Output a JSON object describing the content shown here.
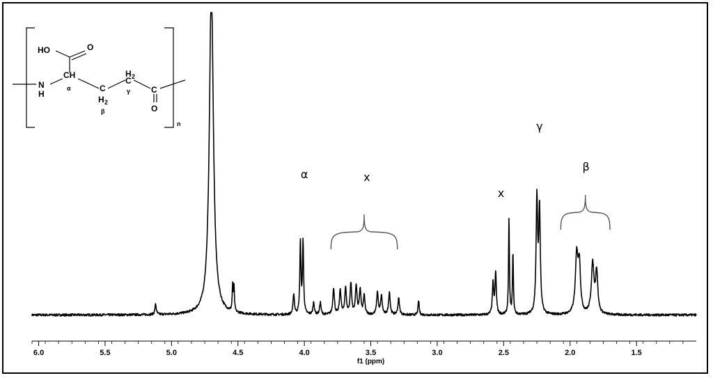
{
  "chart_data": {
    "type": "line",
    "title": "",
    "xlabel": "f1 (ppm)",
    "ylabel": "",
    "xlim": [
      6.05,
      1.05
    ],
    "ylim": [
      0,
      100
    ],
    "x_reversed": true,
    "x_ticks": [
      "6.0",
      "5.5",
      "5.0",
      "4.5",
      "4.0",
      "3.5",
      "3.0",
      "2.5",
      "2.0",
      "1.5"
    ],
    "grid": false,
    "legend": "none",
    "line_color": "#000000",
    "baseline": 1.5,
    "peaks": [
      {
        "ppm": 5.12,
        "height": 5,
        "width": 0.006
      },
      {
        "ppm": 4.7,
        "height": 160,
        "width": 0.018
      },
      {
        "ppm": 4.53,
        "height": 12,
        "width": 0.004
      },
      {
        "ppm": 4.54,
        "height": 12,
        "width": 0.004
      },
      {
        "ppm": 4.08,
        "height": 10,
        "width": 0.006
      },
      {
        "ppm": 4.03,
        "height": 35,
        "width": 0.005
      },
      {
        "ppm": 4.01,
        "height": 35,
        "width": 0.005
      },
      {
        "ppm": 3.93,
        "height": 6,
        "width": 0.006
      },
      {
        "ppm": 3.88,
        "height": 6,
        "width": 0.006
      },
      {
        "ppm": 3.78,
        "height": 13,
        "width": 0.007
      },
      {
        "ppm": 3.73,
        "height": 12,
        "width": 0.007
      },
      {
        "ppm": 3.69,
        "height": 13,
        "width": 0.007
      },
      {
        "ppm": 3.65,
        "height": 15,
        "width": 0.007
      },
      {
        "ppm": 3.61,
        "height": 14,
        "width": 0.007
      },
      {
        "ppm": 3.58,
        "height": 12,
        "width": 0.007
      },
      {
        "ppm": 3.55,
        "height": 9,
        "width": 0.007
      },
      {
        "ppm": 3.45,
        "height": 11,
        "width": 0.007
      },
      {
        "ppm": 3.42,
        "height": 9,
        "width": 0.007
      },
      {
        "ppm": 3.36,
        "height": 11,
        "width": 0.007
      },
      {
        "ppm": 3.29,
        "height": 8,
        "width": 0.007
      },
      {
        "ppm": 3.14,
        "height": 7,
        "width": 0.005
      },
      {
        "ppm": 2.58,
        "height": 15,
        "width": 0.006
      },
      {
        "ppm": 2.56,
        "height": 20,
        "width": 0.006
      },
      {
        "ppm": 2.46,
        "height": 46,
        "width": 0.004
      },
      {
        "ppm": 2.43,
        "height": 30,
        "width": 0.004
      },
      {
        "ppm": 2.25,
        "height": 55,
        "width": 0.007
      },
      {
        "ppm": 2.23,
        "height": 50,
        "width": 0.007
      },
      {
        "ppm": 1.95,
        "height": 28,
        "width": 0.012
      },
      {
        "ppm": 1.93,
        "height": 22,
        "width": 0.01
      },
      {
        "ppm": 1.83,
        "height": 24,
        "width": 0.012
      },
      {
        "ppm": 1.8,
        "height": 20,
        "width": 0.01
      }
    ],
    "annotations": [
      {
        "text": "α",
        "ppm": 4.0
      },
      {
        "text": "x",
        "ppm": 3.53
      },
      {
        "text": "x",
        "ppm": 2.52
      },
      {
        "text": "γ",
        "ppm": 2.23
      },
      {
        "text": "β",
        "ppm": 1.88
      }
    ],
    "braces": [
      {
        "from": 3.8,
        "to": 3.3
      },
      {
        "from": 2.07,
        "to": 1.7
      }
    ]
  },
  "structure": {
    "ho": "HO",
    "o_top": "O",
    "ch": "CH",
    "alpha": "α",
    "nh_n": "N",
    "nh_h": "H",
    "c_beta": "C",
    "h2_beta": "H",
    "two_beta": "2",
    "beta": "β",
    "h2_gamma": "H",
    "two_gamma": "2",
    "c_gamma": "C",
    "gamma": "γ",
    "c_carbonyl": "C",
    "o_bottom": "O",
    "n_sub": "n"
  }
}
